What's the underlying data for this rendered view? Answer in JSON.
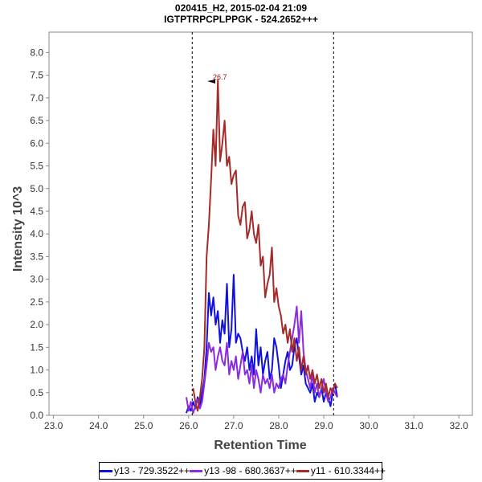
{
  "chart_data": {
    "type": "line",
    "title": "020415_H2, 2015-02-04 21:09",
    "subtitle": "IGTPTRPCPLPPGK - 524.2652+++",
    "xlabel": "Retention Time",
    "ylabel": "Intensity 10^3",
    "xlim": [
      22.9,
      32.3
    ],
    "ylim": [
      0,
      8.45
    ],
    "xticks": [
      "23.0",
      "24.0",
      "25.0",
      "26.0",
      "27.0",
      "28.0",
      "29.0",
      "30.0",
      "31.0",
      "32.0"
    ],
    "yticks": [
      "0.0",
      "0.5",
      "1.0",
      "1.5",
      "2.0",
      "2.5",
      "3.0",
      "3.5",
      "4.0",
      "4.5",
      "5.0",
      "5.5",
      "6.0",
      "6.5",
      "7.0",
      "7.5",
      "8.0"
    ],
    "integration_bounds": [
      26.08,
      29.22
    ],
    "peak_annotation": {
      "x": 26.7,
      "y": 7.4,
      "label": "26.7"
    },
    "legend_position": "bottom",
    "grid": false,
    "series": [
      {
        "name": "y13 - 729.3522++",
        "color": "#1010e0",
        "x": [
          25.95,
          26.0,
          26.05,
          26.1,
          26.15,
          26.2,
          26.25,
          26.3,
          26.35,
          26.4,
          26.45,
          26.5,
          26.55,
          26.6,
          26.65,
          26.7,
          26.75,
          26.8,
          26.85,
          26.9,
          26.95,
          27.0,
          27.05,
          27.1,
          27.15,
          27.2,
          27.25,
          27.3,
          27.35,
          27.4,
          27.45,
          27.5,
          27.55,
          27.6,
          27.65,
          27.7,
          27.75,
          27.8,
          27.85,
          27.9,
          27.95,
          28.0,
          28.05,
          28.1,
          28.15,
          28.2,
          28.25,
          28.3,
          28.35,
          28.4,
          28.45,
          28.5,
          28.55,
          28.6,
          28.65,
          28.7,
          28.75,
          28.8,
          28.85,
          28.9,
          28.95,
          29.0,
          29.05,
          29.1,
          29.15,
          29.2,
          29.25,
          29.3
        ],
        "y": [
          0.05,
          0.2,
          0.1,
          0.3,
          0.15,
          0.4,
          0.2,
          0.5,
          0.8,
          1.5,
          2.7,
          2.2,
          2.6,
          2.0,
          2.3,
          1.6,
          2.1,
          1.8,
          2.9,
          1.5,
          1.9,
          3.1,
          1.6,
          1.8,
          1.7,
          1.4,
          1.2,
          1.5,
          1.0,
          1.3,
          0.9,
          1.9,
          1.1,
          1.5,
          0.9,
          1.2,
          1.4,
          0.8,
          1.0,
          1.7,
          1.5,
          1.1,
          0.6,
          0.9,
          1.2,
          1.4,
          1.0,
          1.1,
          1.5,
          1.7,
          1.3,
          0.9,
          1.1,
          0.7,
          0.6,
          0.5,
          0.7,
          0.3,
          0.5,
          0.4,
          0.6,
          0.3,
          0.5,
          0.4,
          0.2,
          0.5,
          0.7,
          0.4
        ]
      },
      {
        "name": "y13 -98 - 680.3637++",
        "color": "#8a2be2",
        "x": [
          25.95,
          26.0,
          26.05,
          26.1,
          26.15,
          26.2,
          26.25,
          26.3,
          26.35,
          26.4,
          26.45,
          26.5,
          26.55,
          26.6,
          26.65,
          26.7,
          26.75,
          26.8,
          26.85,
          26.9,
          26.95,
          27.0,
          27.05,
          27.1,
          27.15,
          27.2,
          27.25,
          27.3,
          27.35,
          27.4,
          27.45,
          27.5,
          27.55,
          27.6,
          27.65,
          27.7,
          27.75,
          27.8,
          27.85,
          27.9,
          27.95,
          28.0,
          28.05,
          28.1,
          28.15,
          28.2,
          28.25,
          28.3,
          28.35,
          28.4,
          28.45,
          28.5,
          28.55,
          28.6,
          28.65,
          28.7,
          28.75,
          28.8,
          28.85,
          28.9,
          28.95,
          29.0,
          29.05,
          29.1,
          29.15,
          29.2,
          29.25,
          29.3
        ],
        "y": [
          0.4,
          0.1,
          0.3,
          0.05,
          0.2,
          0.35,
          0.15,
          0.3,
          0.7,
          1.1,
          1.6,
          1.4,
          1.5,
          1.0,
          1.3,
          1.5,
          1.2,
          1.1,
          1.6,
          0.9,
          1.2,
          1.0,
          1.3,
          0.8,
          1.1,
          1.4,
          0.9,
          1.0,
          0.7,
          1.1,
          0.6,
          1.0,
          0.8,
          0.5,
          0.9,
          0.7,
          0.8,
          0.6,
          0.9,
          0.5,
          0.7,
          0.6,
          0.8,
          0.9,
          0.7,
          1.1,
          1.4,
          1.7,
          2.0,
          2.4,
          1.6,
          2.3,
          1.4,
          1.0,
          0.8,
          0.6,
          0.9,
          0.5,
          0.7,
          0.4,
          0.6,
          0.8,
          0.5,
          0.3,
          0.4,
          0.6,
          0.5,
          0.4
        ]
      },
      {
        "name": "y11 - 610.3344++",
        "color": "#a52a2a",
        "x": [
          26.1,
          26.15,
          26.2,
          26.25,
          26.3,
          26.35,
          26.4,
          26.45,
          26.5,
          26.55,
          26.6,
          26.65,
          26.7,
          26.75,
          26.8,
          26.85,
          26.9,
          26.95,
          27.0,
          27.05,
          27.1,
          27.15,
          27.2,
          27.25,
          27.3,
          27.35,
          27.4,
          27.45,
          27.5,
          27.55,
          27.6,
          27.65,
          27.7,
          27.75,
          27.8,
          27.85,
          27.9,
          27.95,
          28.0,
          28.05,
          28.1,
          28.15,
          28.2,
          28.25,
          28.3,
          28.35,
          28.4,
          28.45,
          28.5,
          28.55,
          28.6,
          28.65,
          28.7,
          28.75,
          28.8,
          28.85,
          28.9,
          28.95,
          29.0,
          29.05,
          29.1,
          29.15,
          29.2,
          29.25,
          29.3
        ],
        "y": [
          0.6,
          0.3,
          0.1,
          0.4,
          0.8,
          1.5,
          3.5,
          4.2,
          5.2,
          6.3,
          5.5,
          7.4,
          5.6,
          6.0,
          6.5,
          5.5,
          5.7,
          5.1,
          5.3,
          5.4,
          4.4,
          4.2,
          4.6,
          4.7,
          3.9,
          4.1,
          4.5,
          4.0,
          3.8,
          4.2,
          3.3,
          3.5,
          2.6,
          2.9,
          3.1,
          3.7,
          2.5,
          2.8,
          2.4,
          2.2,
          1.8,
          2.0,
          1.6,
          1.9,
          1.4,
          1.7,
          1.2,
          1.5,
          1.0,
          1.3,
          0.9,
          1.1,
          0.8,
          1.0,
          0.7,
          0.9,
          0.6,
          0.8,
          0.5,
          0.7,
          0.4,
          0.6,
          0.5,
          0.7,
          0.6
        ]
      }
    ]
  }
}
